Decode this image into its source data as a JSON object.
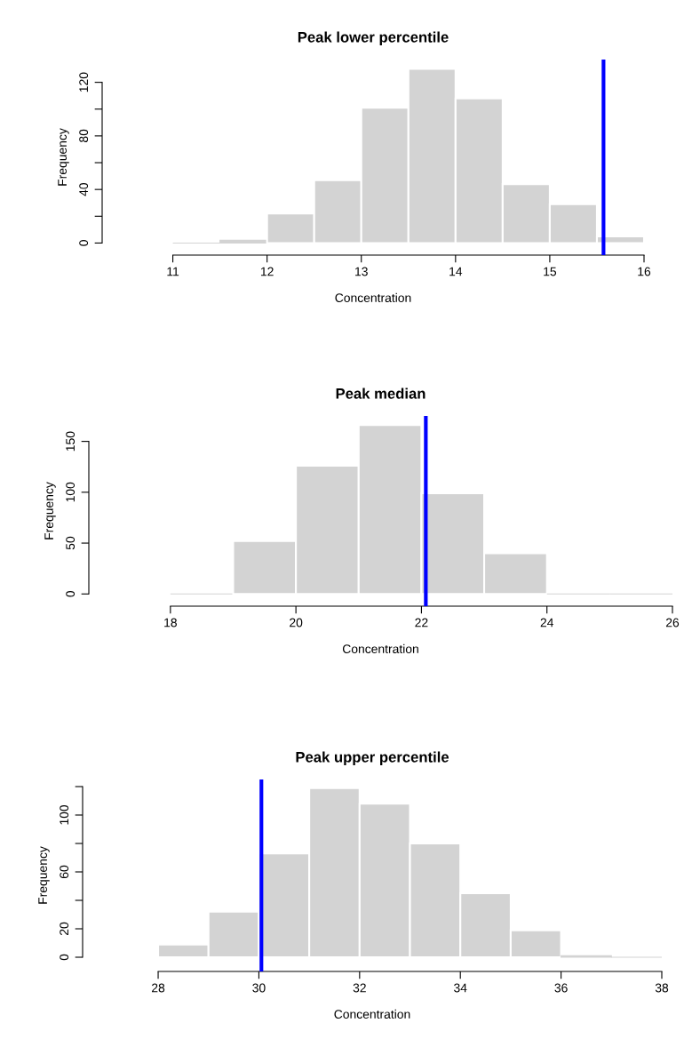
{
  "chart_data": [
    {
      "type": "histogram",
      "title": "Peak lower percentile",
      "xlabel": "Concentration",
      "ylabel": "Frequency",
      "color": "#d3d3d3",
      "bins": [
        11,
        11.5,
        12,
        12.5,
        13,
        13.5,
        14,
        14.5,
        15,
        15.5,
        16
      ],
      "values": [
        0,
        2,
        22,
        47,
        101,
        130,
        108,
        44,
        29,
        5
      ],
      "xlim": [
        10.25,
        16
      ],
      "xticks": [
        11,
        12,
        13,
        14,
        15,
        16
      ],
      "ylim": [
        -9,
        137
      ],
      "yticks": [
        0,
        {
          "value": 20,
          "label": null
        },
        40,
        {
          "value": 60,
          "label": null
        },
        80,
        {
          "value": 100,
          "label": null
        },
        120
      ],
      "ref_lines": [
        {
          "axis": "x",
          "value": 15.57,
          "color": "#0000ff"
        }
      ]
    },
    {
      "type": "histogram",
      "title": "Peak median",
      "xlabel": "Concentration",
      "ylabel": "Frequency",
      "color": "#d3d3d3",
      "bins": [
        18,
        19,
        20,
        21,
        22,
        23,
        24,
        25,
        26
      ],
      "values": [
        0,
        52,
        126,
        166,
        99,
        40,
        0,
        0
      ],
      "xlim": [
        16.7,
        26
      ],
      "xticks": [
        18,
        20,
        22,
        24,
        26
      ],
      "ylim": [
        -12,
        175
      ],
      "yticks": [
        0,
        50,
        100,
        150
      ],
      "ref_lines": [
        {
          "axis": "x",
          "value": 22.07,
          "color": "#0000ff"
        }
      ]
    },
    {
      "type": "histogram",
      "title": "Peak upper percentile",
      "xlabel": "Concentration",
      "ylabel": "Frequency",
      "color": "#d3d3d3",
      "bins": [
        28,
        29,
        30,
        31,
        32,
        33,
        34,
        35,
        36,
        37,
        38
      ],
      "values": [
        9,
        32,
        73,
        119,
        108,
        80,
        45,
        19,
        1,
        0
      ],
      "xlim": [
        26.5,
        38
      ],
      "xticks": [
        28,
        30,
        32,
        34,
        36,
        38
      ],
      "ylim": [
        -10,
        125
      ],
      "yticks": [
        0,
        20,
        {
          "value": 40,
          "label": null
        },
        60,
        {
          "value": 80,
          "label": null
        },
        100,
        {
          "value": 120,
          "label": null
        }
      ],
      "ref_lines": [
        {
          "axis": "x",
          "value": 30.05,
          "color": "#0000ff"
        }
      ]
    }
  ]
}
